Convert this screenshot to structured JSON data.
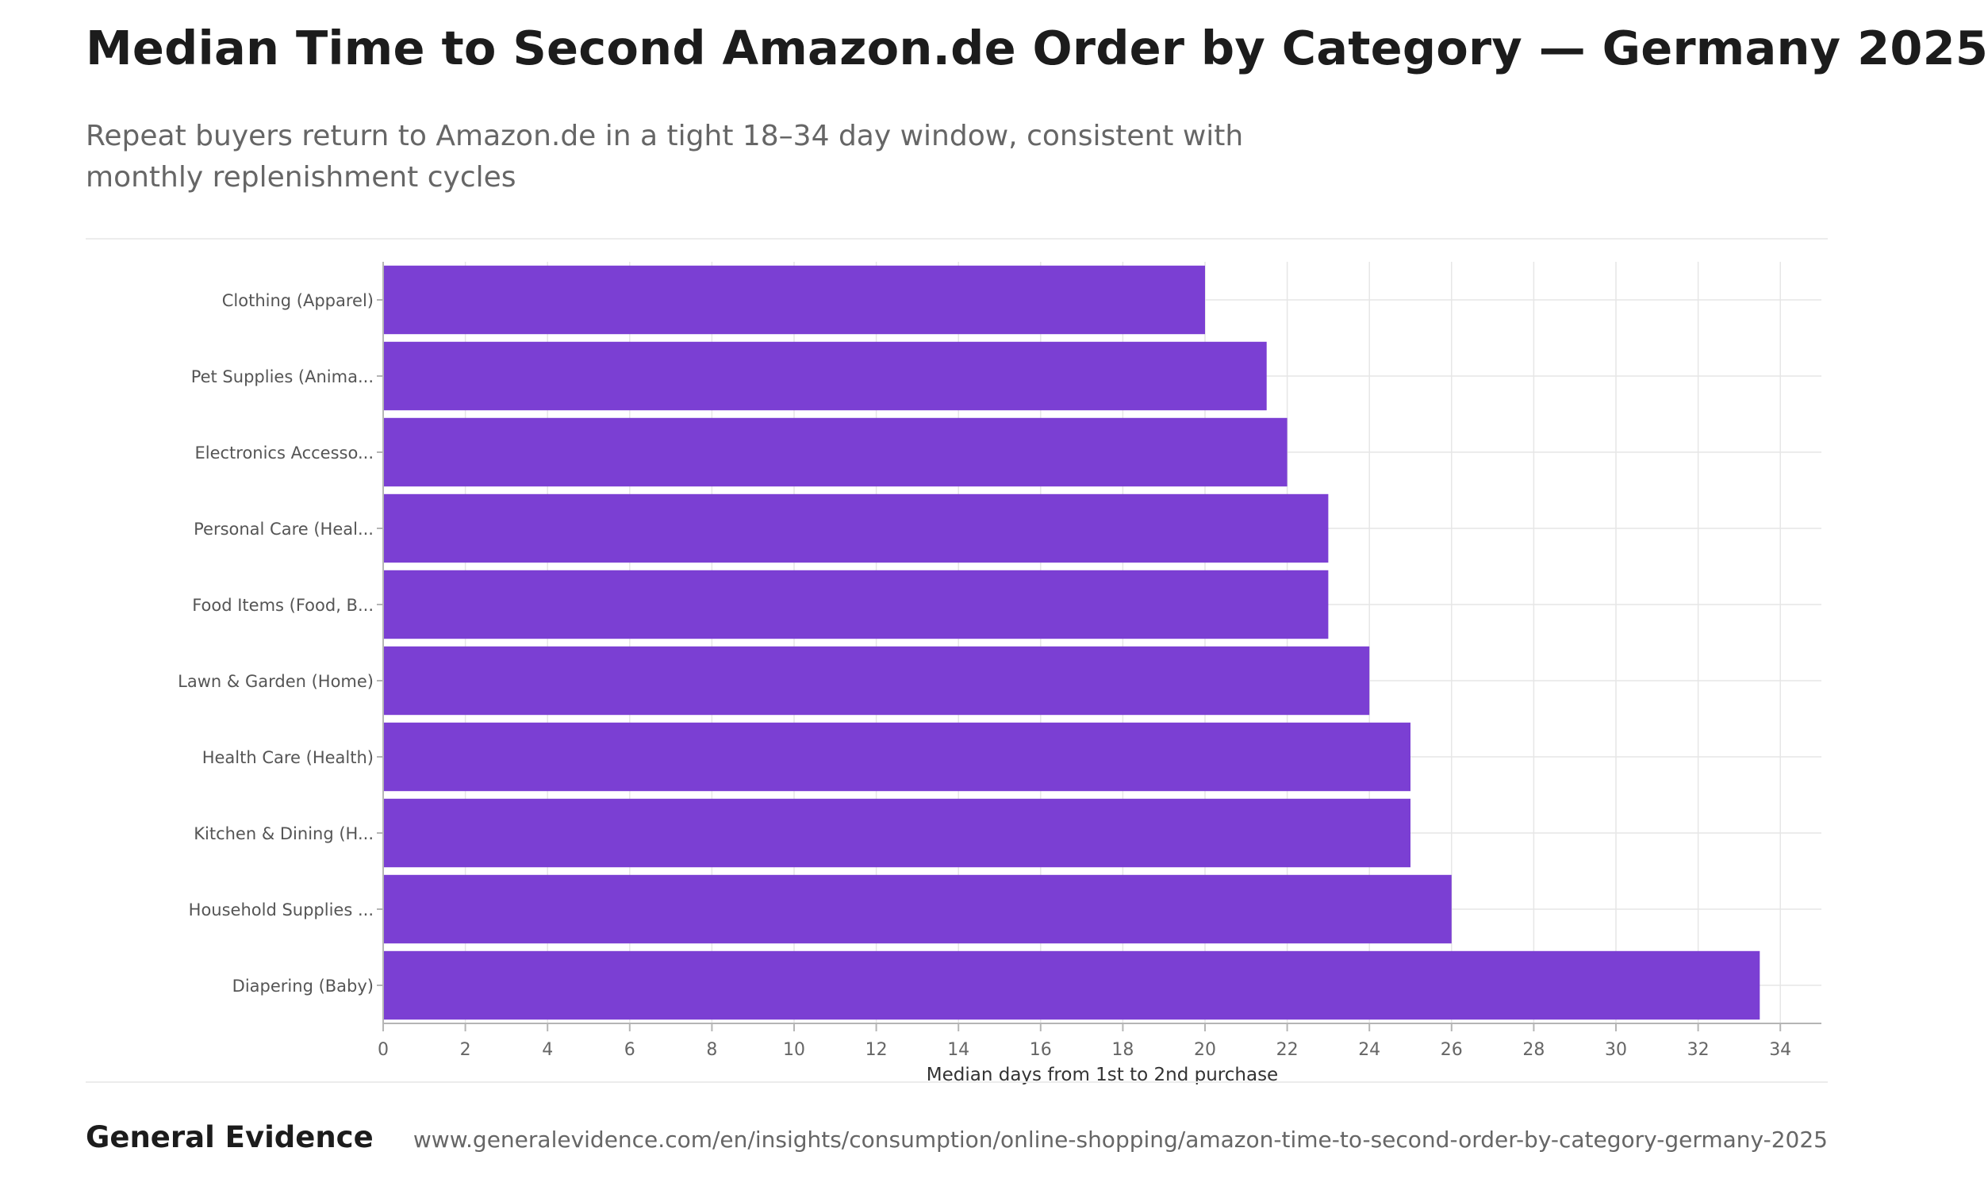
{
  "header": {
    "title": "Median Time to Second Amazon.de Order by Category — Germany 2025",
    "subtitle": "Repeat buyers return to Amazon.de in a tight 18–34 day window, consistent with monthly replenishment cycles"
  },
  "footer": {
    "brand": "General Evidence",
    "source_url": "www.generalevidence.com/en/insights/consumption/online-shopping/amazon-time-to-second-order-by-category-germany-2025"
  },
  "chart_data": {
    "type": "bar",
    "orientation": "horizontal",
    "title": "Median Time to Second Amazon.de Order by Category — Germany 2025",
    "subtitle": "Repeat buyers return to Amazon.de in a tight 18–34 day window, consistent with monthly replenishment cycles",
    "xlabel": "Median days from 1st to 2nd purchase",
    "ylabel": "",
    "categories": [
      "Clothing (Apparel)",
      "Pet Supplies (Anima...",
      "Electronics Accesso...",
      "Personal Care (Heal...",
      "Food Items (Food, B...",
      "Lawn & Garden (Home)",
      "Health Care (Health)",
      "Kitchen & Dining (H...",
      "Household Supplies ...",
      "Diapering (Baby)"
    ],
    "values": [
      20,
      21.5,
      22,
      23,
      23,
      24,
      25,
      25,
      26,
      33.5
    ],
    "xlim": [
      0,
      35
    ],
    "xticks": [
      0,
      2,
      4,
      6,
      8,
      10,
      12,
      14,
      16,
      18,
      20,
      22,
      24,
      26,
      28,
      30,
      32,
      34
    ],
    "grid": true,
    "legend": "none",
    "colors": {
      "bar": "#7b3fd3",
      "grid": "#e6e6e6",
      "axis": "#b5b5b5",
      "tick_label": "#666666",
      "category_label": "#555555"
    }
  }
}
